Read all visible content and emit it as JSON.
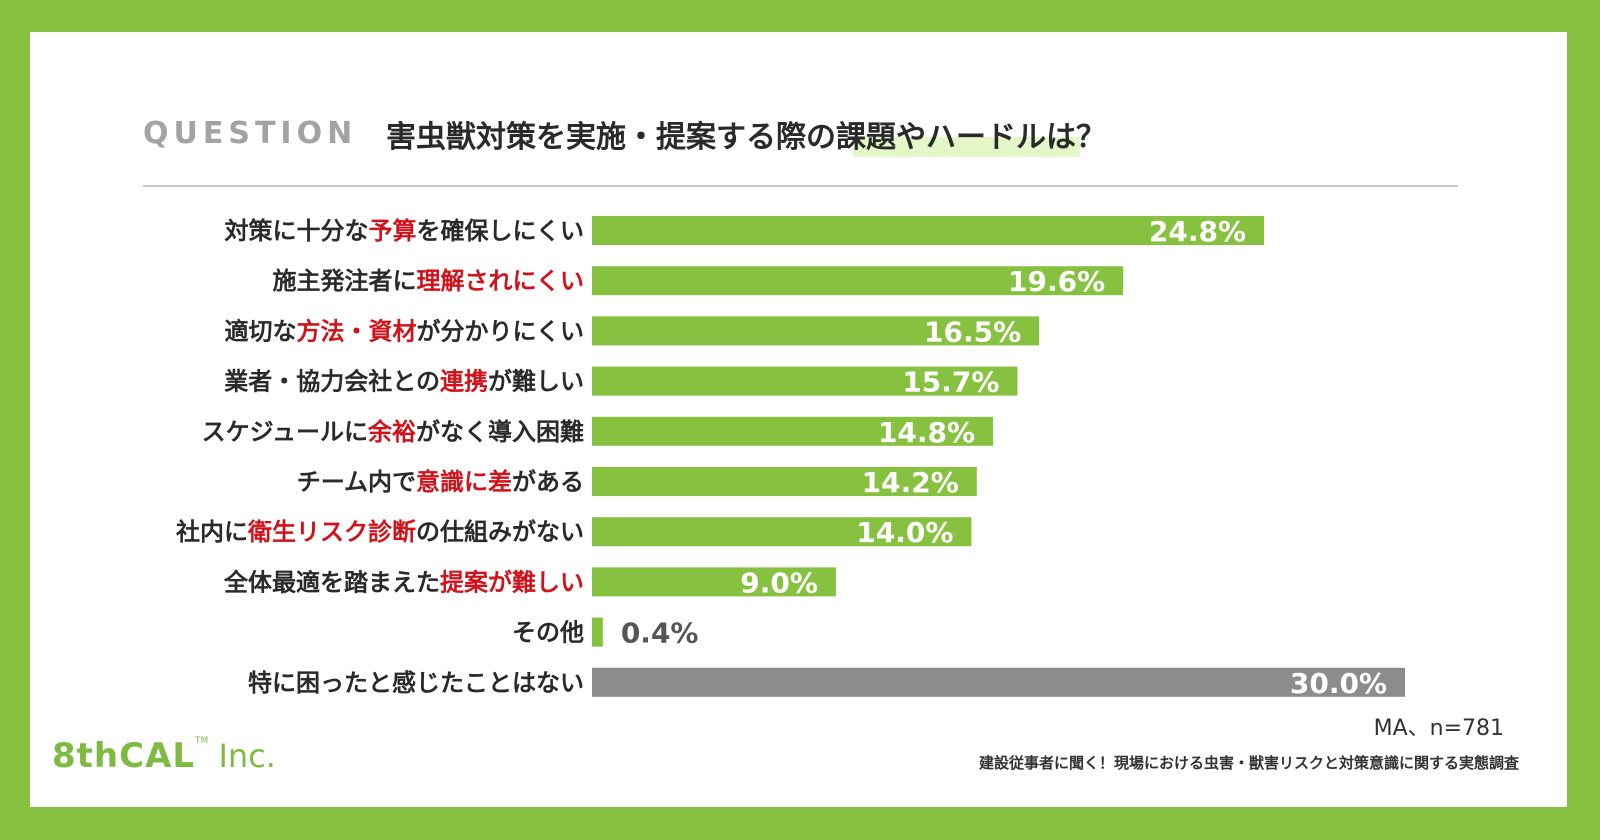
{
  "question": {
    "label": "QUESTION",
    "text": "害虫獣対策を実施・提案する際の課題やハードルは？"
  },
  "chart_data": {
    "type": "bar",
    "orientation": "horizontal",
    "categories": [
      "対策に十分な予算を確保しにくい",
      "施主発注者に理解されにくい",
      "適切な方法・資材が分かりにくい",
      "業者・協力会社との連携が難しい",
      "スケジュールに余裕がなく導入困難",
      "チーム内で意識に差がある",
      "社内に衛生リスク診断の仕組みがない",
      "全体最適を踏まえた提案が難しい",
      "その他",
      "特に困ったと感じたことはない"
    ],
    "category_parts": [
      [
        [
          "対策に十分な",
          false
        ],
        [
          "予算",
          true
        ],
        [
          "を確保しにくい",
          false
        ]
      ],
      [
        [
          "施主発注者に",
          false
        ],
        [
          "理解されにくい",
          true
        ]
      ],
      [
        [
          "適切な",
          false
        ],
        [
          "方法・資材",
          true
        ],
        [
          "が分かりにくい",
          false
        ]
      ],
      [
        [
          "業者・協力会社との",
          false
        ],
        [
          "連携",
          true
        ],
        [
          "が難しい",
          false
        ]
      ],
      [
        [
          "スケジュールに",
          false
        ],
        [
          "余裕",
          true
        ],
        [
          "がなく導入困難",
          false
        ]
      ],
      [
        [
          "チーム内で",
          false
        ],
        [
          "意識に差",
          true
        ],
        [
          "がある",
          false
        ]
      ],
      [
        [
          "社内に",
          false
        ],
        [
          "衛生リスク診断",
          true
        ],
        [
          "の仕組みがない",
          false
        ]
      ],
      [
        [
          "全体最適を踏まえた",
          false
        ],
        [
          "提案が難しい",
          true
        ]
      ],
      [
        [
          "その他",
          false
        ]
      ],
      [
        [
          "特に困ったと感じたことはない",
          false
        ]
      ]
    ],
    "values": [
      24.8,
      19.6,
      16.5,
      15.7,
      14.8,
      14.2,
      14.0,
      9.0,
      0.4,
      30.0
    ],
    "value_labels": [
      "24.8%",
      "19.6%",
      "16.5%",
      "15.7%",
      "14.8%",
      "14.2%",
      "14.0%",
      "9.0%",
      "0.4%",
      "30.0%"
    ],
    "bar_colors": [
      "#86c23f",
      "#86c23f",
      "#86c23f",
      "#86c23f",
      "#86c23f",
      "#86c23f",
      "#86c23f",
      "#86c23f",
      "#86c23f",
      "#8c8c8c"
    ],
    "xlim": [
      0,
      30
    ],
    "unit": "%"
  },
  "note": "MA、n=781",
  "logo": {
    "main": "8thCAL",
    "tm": "TM",
    "suffix": " Inc."
  },
  "survey_title": "建設従事者に聞く！現場における虫害・獣害リスクと対策意識に関する実態調査",
  "colors": {
    "frame": "#86c23f",
    "bar": "#86c23f",
    "bar_other": "#8c8c8c",
    "highlight_text": "#d1121b"
  }
}
